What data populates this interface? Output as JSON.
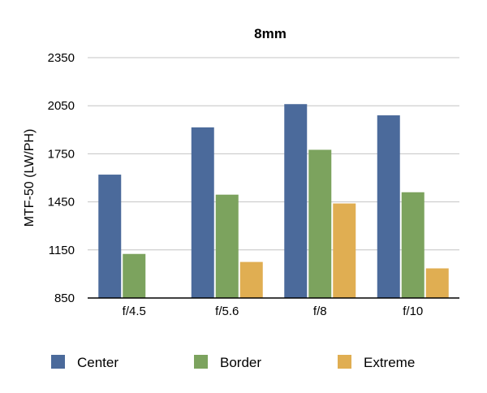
{
  "chart_data": {
    "type": "bar",
    "title": "8mm",
    "xlabel": "",
    "ylabel": "MTF-50 (LW/PH)",
    "ylim": [
      850,
      2350
    ],
    "yticks": [
      850,
      1150,
      1450,
      1750,
      2050,
      2350
    ],
    "categories": [
      "f/4.5",
      "f/5.6",
      "f/8",
      "f/10"
    ],
    "series": [
      {
        "name": "Center",
        "color": "#4b6a9b",
        "values": [
          1620,
          1915,
          2060,
          1990
        ]
      },
      {
        "name": "Border",
        "color": "#7ca35e",
        "values": [
          1125,
          1495,
          1775,
          1510
        ]
      },
      {
        "name": "Extreme",
        "color": "#e0ae52",
        "values": [
          null,
          1075,
          1440,
          1035
        ]
      }
    ],
    "grid": true,
    "legend_position": "bottom"
  }
}
